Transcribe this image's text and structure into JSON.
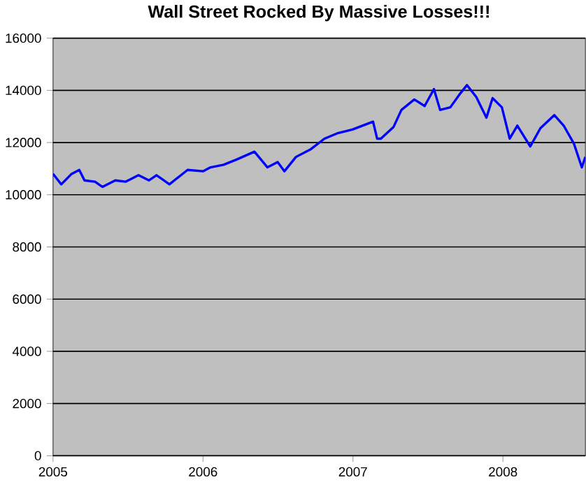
{
  "chart_data": {
    "type": "line",
    "title": "Wall Street Rocked By Massive Losses!!!",
    "x": [
      2005.0,
      2005.055,
      2005.124,
      2005.175,
      2005.21,
      2005.28,
      2005.33,
      2005.415,
      2005.485,
      2005.57,
      2005.64,
      2005.69,
      2005.776,
      2005.897,
      2006.0,
      2006.05,
      2006.137,
      2006.224,
      2006.343,
      2006.43,
      2006.498,
      2006.543,
      2006.62,
      2006.72,
      2006.81,
      2006.894,
      2006.997,
      2007.134,
      2007.161,
      2007.186,
      2007.271,
      2007.323,
      2007.409,
      2007.478,
      2007.54,
      2007.581,
      2007.649,
      2007.718,
      2007.76,
      2007.822,
      2007.89,
      2007.931,
      2007.993,
      2008.045,
      2008.096,
      2008.182,
      2008.25,
      2008.343,
      2008.405,
      2008.474,
      2008.526,
      2008.55
    ],
    "series": [
      {
        "color": "#0000ff",
        "values": [
          10800,
          10400,
          10800,
          10950,
          10550,
          10500,
          10300,
          10550,
          10500,
          10750,
          10550,
          10750,
          10400,
          10950,
          10900,
          11050,
          11150,
          11350,
          11650,
          11050,
          11250,
          10900,
          11450,
          11750,
          12150,
          12350,
          12500,
          12800,
          12150,
          12150,
          12600,
          13250,
          13650,
          13400,
          14050,
          13250,
          13350,
          13900,
          14200,
          13750,
          12950,
          13700,
          13350,
          12150,
          12650,
          11850,
          12550,
          13050,
          12650,
          11950,
          11050,
          11450
        ]
      }
    ],
    "xlim": [
      2005,
      2008.55
    ],
    "ylim": [
      0,
      16000
    ],
    "xticks": [
      2005,
      2006,
      2007,
      2008
    ],
    "yticks": [
      0,
      2000,
      4000,
      6000,
      8000,
      10000,
      12000,
      14000,
      16000
    ],
    "grid": "y",
    "marker": "none",
    "line_style": "solid"
  }
}
